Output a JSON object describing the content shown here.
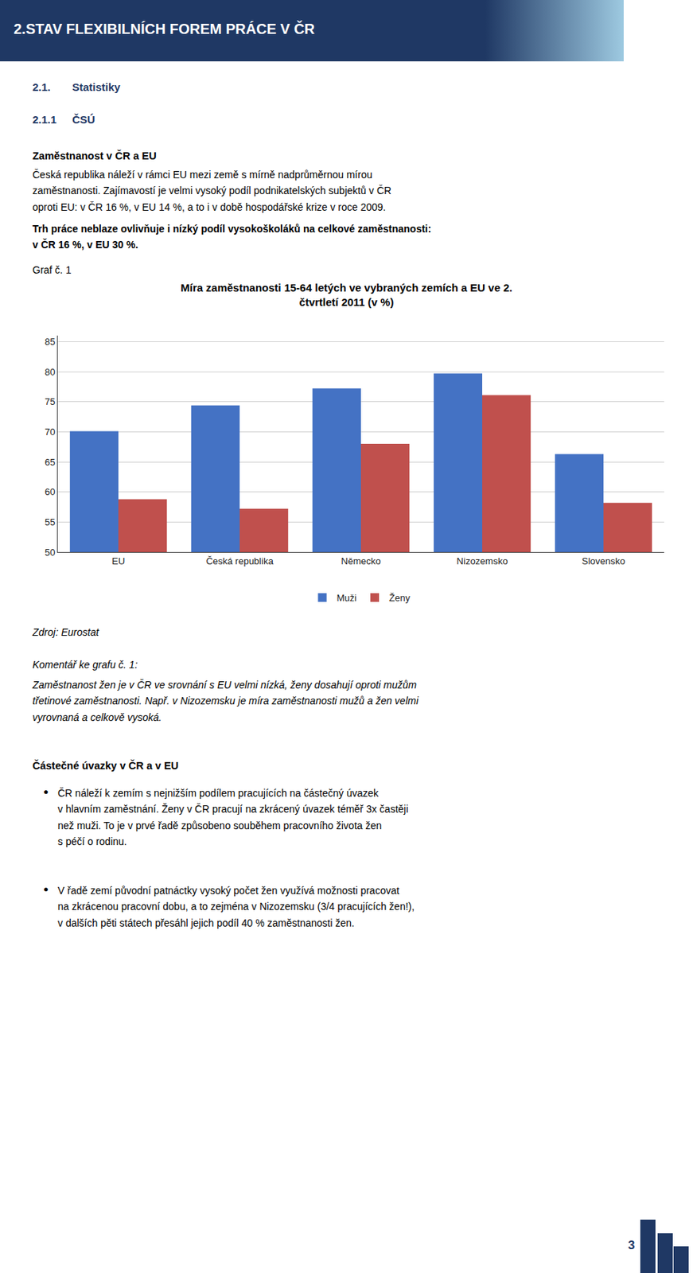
{
  "chart_data": {
    "type": "bar",
    "title": "Míra zaměstnanosti 15-64 letých ve vybraných zemích a EU ve 2.\nčtvrtletí 2011 (v %)",
    "categories": [
      "EU",
      "Česká republika",
      "Německo",
      "Nizozemsko",
      "Slovensko"
    ],
    "series": [
      {
        "name": "Muži",
        "color": "#4472C4",
        "values": [
          70.1,
          74.4,
          77.2,
          79.7,
          66.3
        ]
      },
      {
        "name": "Ženy",
        "color": "#C0504D",
        "values": [
          58.8,
          57.2,
          68.0,
          76.1,
          58.2
        ]
      }
    ],
    "ylim": [
      50,
      86
    ],
    "yticks": [
      50,
      55,
      60,
      65,
      70,
      75,
      80,
      85
    ],
    "grid": true,
    "legend": "bottom",
    "annotations": [
      "2.STAV FLEXIBILNÍCH FOREM PRÁCE V ČR",
      "2.1.",
      "Statistiky",
      "2.1.1",
      "ČSÚ",
      "Zaměstnanost v ČR a EU",
      "Česká republika náleží v rámci EU mezi země s mírně nadprůměrnou mírou\nzaměstnanosti. Zajímavostí je velmi vysoký podíl podnikatelských subjektů v ČR\noproti EU: v ČR 16 %, v EU 14 %, a to i v době hospodářské krize v roce 2009.",
      "Trh práce neblaze ovlivňuje i nízký podíl vysokoškoláků na celkové zaměstnanosti:\nv ČR 16 %, v EU 30 %.",
      "Graf č. 1",
      "Zdroj: Eurostat",
      "Komentář ke grafu č. 1:",
      "Zaměstnanost žen je v ČR ve srovnání s EU velmi nízká, ženy dosahují oproti mužům\ntřetinové zaměstnanosti. Např. v Nizozemsku je míra zaměstnanosti mužů a žen velmi\nvyrovnaná a celkově vysoká.",
      "Částečné úvazky v ČR a v EU",
      "●",
      "ČR náleží k zemím s nejnižším podílem pracujících na částečný úvazek\nv hlavním zaměstnání. Ženy v ČR pracují na zkrácený úvazek téměř 3x častěji\nnež muži. To je v prvé řadě způsobeno souběhem pracovního života žen\ns péčí o rodinu.",
      "●",
      "V řadě zemí původní patnáctky vysoký počet žen využívá možnosti pracovat\nna zkrácenou pracovní dobu, a to zejména v Nizozemsku (3/4 pracujících žen!),\nv dalších pěti státech přesáhl jejich podíl 40 % zaměstnanosti žen.",
      "3"
    ]
  }
}
